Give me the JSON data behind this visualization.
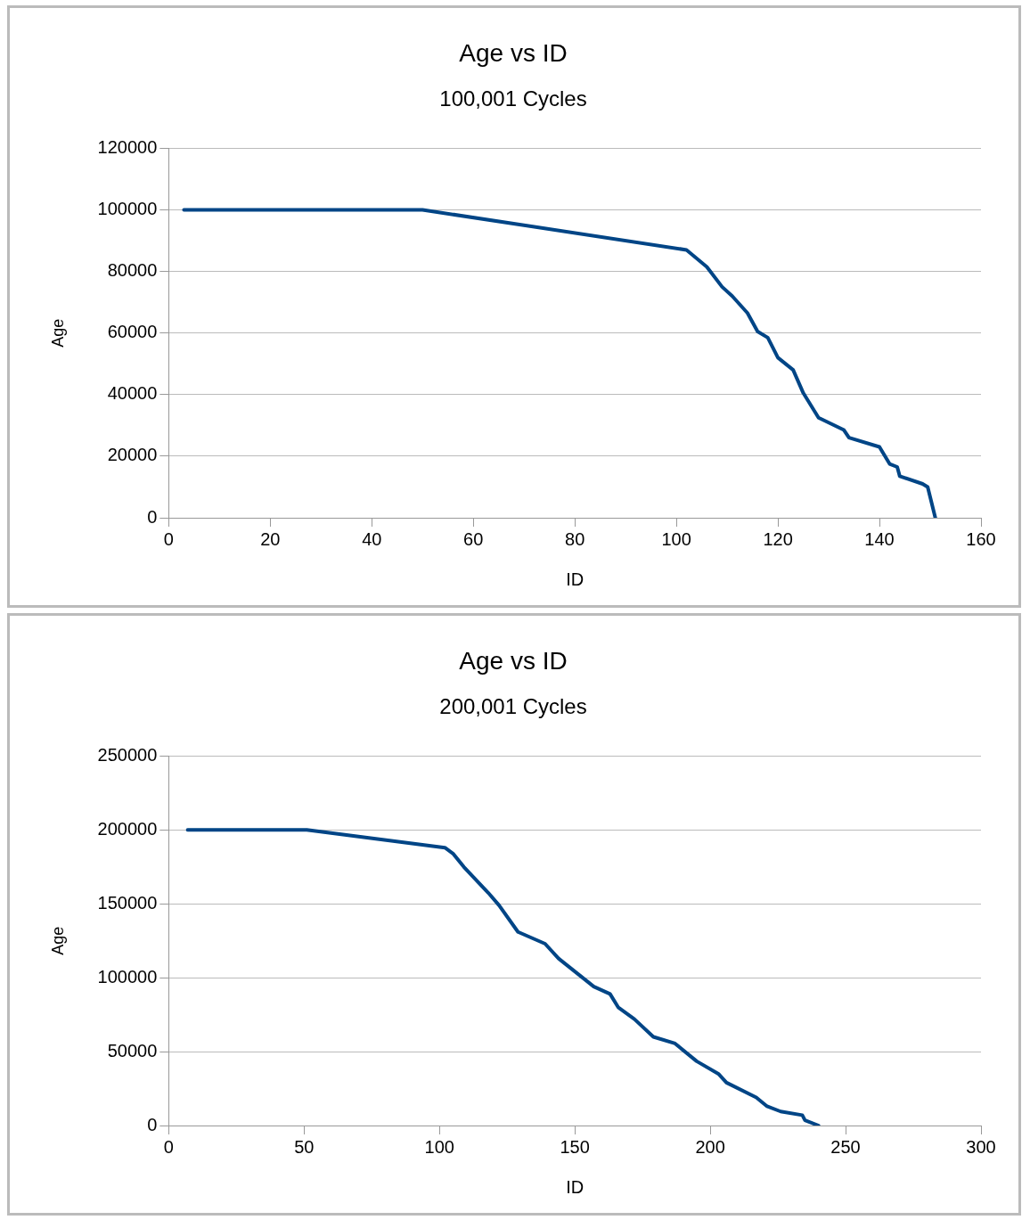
{
  "chart_data": [
    {
      "type": "line",
      "title": "Age vs ID",
      "subtitle": "100,001 Cycles",
      "xlabel": "ID",
      "ylabel": "Age",
      "series": [
        {
          "color": "#004586",
          "x": [
            3,
            50,
            102,
            106,
            109,
            111,
            114,
            116,
            118,
            120,
            123,
            125,
            128,
            133,
            134,
            140,
            142,
            143.5,
            144,
            148.5,
            149.5,
            151
          ],
          "values": [
            100000,
            100000,
            87000,
            81500,
            75000,
            72000,
            66500,
            60500,
            58500,
            52000,
            48000,
            40500,
            32500,
            28500,
            26000,
            23000,
            17500,
            16500,
            13500,
            11000,
            10000,
            0
          ]
        }
      ],
      "xlim": [
        0,
        160
      ],
      "xticks": [
        0,
        20,
        40,
        60,
        80,
        100,
        120,
        140,
        160
      ],
      "ylim": [
        0,
        120000
      ],
      "yticks": [
        0,
        20000,
        40000,
        60000,
        80000,
        100000,
        120000
      ],
      "grid": "y",
      "legend": false,
      "marker": "none",
      "line_style": "solid"
    },
    {
      "type": "line",
      "title": "Age vs ID",
      "subtitle": "200,001 Cycles",
      "xlabel": "ID",
      "ylabel": "Age",
      "series": [
        {
          "color": "#004586",
          "x": [
            7,
            51,
            102,
            105,
            109,
            118,
            122,
            129,
            139,
            144,
            157,
            163,
            166,
            172,
            179,
            187,
            195,
            203,
            206,
            217,
            221,
            226,
            234,
            235,
            240
          ],
          "values": [
            200000,
            200000,
            188000,
            184000,
            175000,
            157500,
            149000,
            131000,
            123000,
            113000,
            94000,
            89000,
            80000,
            72000,
            60000,
            55500,
            43500,
            35000,
            29000,
            19000,
            13000,
            9500,
            7000,
            3500,
            0
          ]
        }
      ],
      "xlim": [
        0,
        300
      ],
      "xticks": [
        0,
        50,
        100,
        150,
        200,
        250,
        300
      ],
      "ylim": [
        0,
        250000
      ],
      "yticks": [
        0,
        50000,
        100000,
        150000,
        200000,
        250000
      ],
      "grid": "y",
      "legend": false,
      "marker": "none",
      "line_style": "solid"
    }
  ]
}
